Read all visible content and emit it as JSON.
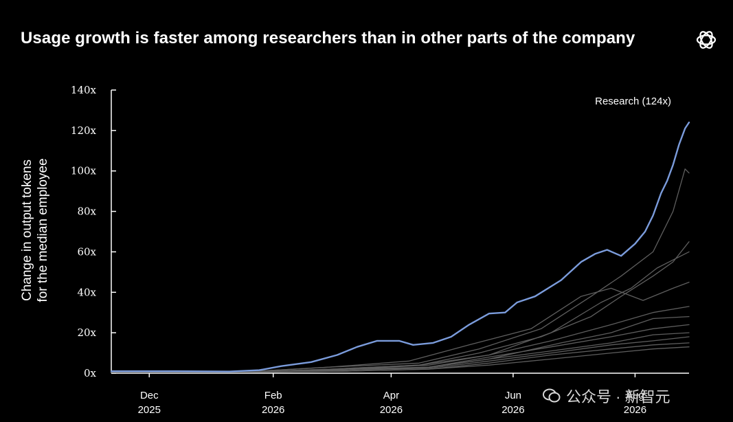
{
  "chart_data": {
    "type": "line",
    "title": "Usage growth is faster among researchers than in other parts of the company",
    "ylabel_lines": [
      "Change in output tokens",
      "for the median employee"
    ],
    "ylim": [
      0,
      140
    ],
    "yticks": [
      {
        "value": 0,
        "label": "0x"
      },
      {
        "value": 20,
        "label": "20x"
      },
      {
        "value": 40,
        "label": "40x"
      },
      {
        "value": 60,
        "label": "60x"
      },
      {
        "value": 80,
        "label": "80x"
      },
      {
        "value": 100,
        "label": "100x"
      },
      {
        "value": 120,
        "label": "120x"
      },
      {
        "value": 140,
        "label": "140x"
      }
    ],
    "xlim": [
      "2025-11-12",
      "2026-08-28"
    ],
    "xticks": [
      {
        "date": "2025-12-01",
        "month": "Dec",
        "year": "2025"
      },
      {
        "date": "2026-02-01",
        "month": "Feb",
        "year": "2026"
      },
      {
        "date": "2026-04-01",
        "month": "Apr",
        "year": "2026"
      },
      {
        "date": "2026-06-01",
        "month": "Jun",
        "year": "2026"
      },
      {
        "date": "2026-08-01",
        "month": "Aug",
        "year": "2026"
      }
    ],
    "annotation": {
      "text": "Research (124x)",
      "series": "Research"
    },
    "grid": false,
    "legend": "none",
    "highlight_color": "#7b9cdc",
    "other_color": "#5e5e5e",
    "series": [
      {
        "name": "Research",
        "highlight": true,
        "points": [
          [
            "2025-11-12",
            1
          ],
          [
            "2025-12-15",
            1
          ],
          [
            "2026-01-10",
            0.8
          ],
          [
            "2026-01-25",
            1.5
          ],
          [
            "2026-02-05",
            3.5
          ],
          [
            "2026-02-20",
            5.5
          ],
          [
            "2026-03-05",
            9
          ],
          [
            "2026-03-15",
            13
          ],
          [
            "2026-03-25",
            16
          ],
          [
            "2026-04-05",
            16
          ],
          [
            "2026-04-12",
            14
          ],
          [
            "2026-04-22",
            15
          ],
          [
            "2026-05-01",
            18
          ],
          [
            "2026-05-10",
            24
          ],
          [
            "2026-05-20",
            29.5
          ],
          [
            "2026-05-28",
            30
          ],
          [
            "2026-06-03",
            35
          ],
          [
            "2026-06-12",
            38
          ],
          [
            "2026-06-25",
            46
          ],
          [
            "2026-07-05",
            55
          ],
          [
            "2026-07-12",
            59
          ],
          [
            "2026-07-18",
            61
          ],
          [
            "2026-07-25",
            58
          ],
          [
            "2026-08-01",
            64
          ],
          [
            "2026-08-06",
            70
          ],
          [
            "2026-08-10",
            78
          ],
          [
            "2026-08-14",
            89
          ],
          [
            "2026-08-17",
            95
          ],
          [
            "2026-08-20",
            103
          ],
          [
            "2026-08-23",
            113
          ],
          [
            "2026-08-26",
            121
          ],
          [
            "2026-08-28",
            124
          ]
        ]
      },
      {
        "points": [
          [
            "2025-11-12",
            0.5
          ],
          [
            "2026-01-15",
            0.5
          ],
          [
            "2026-03-01",
            3
          ],
          [
            "2026-04-15",
            5
          ],
          [
            "2026-05-15",
            12
          ],
          [
            "2026-06-15",
            22
          ],
          [
            "2026-07-10",
            38
          ],
          [
            "2026-07-25",
            48
          ],
          [
            "2026-08-10",
            60
          ],
          [
            "2026-08-20",
            80
          ],
          [
            "2026-08-26",
            101
          ],
          [
            "2026-08-28",
            99
          ]
        ]
      },
      {
        "points": [
          [
            "2025-11-12",
            0.5
          ],
          [
            "2026-01-15",
            0.5
          ],
          [
            "2026-03-01",
            2
          ],
          [
            "2026-04-15",
            4
          ],
          [
            "2026-05-15",
            10
          ],
          [
            "2026-06-15",
            18
          ],
          [
            "2026-07-10",
            28
          ],
          [
            "2026-07-25",
            38
          ],
          [
            "2026-08-10",
            48
          ],
          [
            "2026-08-20",
            55
          ],
          [
            "2026-08-28",
            65
          ]
        ]
      },
      {
        "points": [
          [
            "2025-11-12",
            0.5
          ],
          [
            "2026-01-15",
            0.5
          ],
          [
            "2026-03-01",
            2
          ],
          [
            "2026-04-15",
            4
          ],
          [
            "2026-05-20",
            9
          ],
          [
            "2026-06-20",
            20
          ],
          [
            "2026-07-15",
            35
          ],
          [
            "2026-07-30",
            42
          ],
          [
            "2026-08-12",
            52
          ],
          [
            "2026-08-28",
            60
          ]
        ]
      },
      {
        "points": [
          [
            "2025-11-12",
            0.5
          ],
          [
            "2026-01-15",
            0.5
          ],
          [
            "2026-03-01",
            3
          ],
          [
            "2026-04-10",
            6
          ],
          [
            "2026-05-10",
            14
          ],
          [
            "2026-06-10",
            22
          ],
          [
            "2026-07-05",
            38
          ],
          [
            "2026-07-20",
            42
          ],
          [
            "2026-08-05",
            36
          ],
          [
            "2026-08-20",
            42
          ],
          [
            "2026-08-28",
            45
          ]
        ]
      },
      {
        "points": [
          [
            "2025-11-12",
            0.5
          ],
          [
            "2026-01-20",
            0.5
          ],
          [
            "2026-03-10",
            2
          ],
          [
            "2026-04-20",
            4
          ],
          [
            "2026-05-20",
            9
          ],
          [
            "2026-06-20",
            16
          ],
          [
            "2026-07-20",
            24
          ],
          [
            "2026-08-10",
            30
          ],
          [
            "2026-08-28",
            33
          ]
        ]
      },
      {
        "points": [
          [
            "2025-11-12",
            0.5
          ],
          [
            "2026-01-20",
            0.5
          ],
          [
            "2026-03-10",
            2
          ],
          [
            "2026-04-20",
            3
          ],
          [
            "2026-05-20",
            7
          ],
          [
            "2026-06-25",
            15
          ],
          [
            "2026-07-20",
            20
          ],
          [
            "2026-08-10",
            27
          ],
          [
            "2026-08-28",
            28
          ]
        ]
      },
      {
        "points": [
          [
            "2025-11-12",
            0.5
          ],
          [
            "2026-01-20",
            0.5
          ],
          [
            "2026-03-10",
            1.5
          ],
          [
            "2026-04-20",
            3
          ],
          [
            "2026-05-20",
            8
          ],
          [
            "2026-06-20",
            13
          ],
          [
            "2026-07-20",
            18
          ],
          [
            "2026-08-10",
            22
          ],
          [
            "2026-08-28",
            24
          ]
        ]
      },
      {
        "points": [
          [
            "2025-11-12",
            0.5
          ],
          [
            "2026-01-20",
            0.5
          ],
          [
            "2026-03-10",
            1.5
          ],
          [
            "2026-04-20",
            3
          ],
          [
            "2026-05-20",
            7
          ],
          [
            "2026-06-20",
            11
          ],
          [
            "2026-07-20",
            15
          ],
          [
            "2026-08-10",
            19
          ],
          [
            "2026-08-28",
            20
          ]
        ]
      },
      {
        "points": [
          [
            "2025-11-12",
            0.5
          ],
          [
            "2026-01-20",
            0.5
          ],
          [
            "2026-03-10",
            1.5
          ],
          [
            "2026-04-20",
            2.5
          ],
          [
            "2026-05-20",
            6
          ],
          [
            "2026-06-20",
            10
          ],
          [
            "2026-07-20",
            14
          ],
          [
            "2026-08-10",
            16
          ],
          [
            "2026-08-28",
            18
          ]
        ]
      },
      {
        "points": [
          [
            "2025-11-12",
            0.5
          ],
          [
            "2026-01-20",
            0.5
          ],
          [
            "2026-03-10",
            1
          ],
          [
            "2026-04-20",
            2
          ],
          [
            "2026-05-20",
            5
          ],
          [
            "2026-06-20",
            9
          ],
          [
            "2026-07-20",
            12
          ],
          [
            "2026-08-10",
            14
          ],
          [
            "2026-08-28",
            15
          ]
        ]
      },
      {
        "points": [
          [
            "2025-11-12",
            0.5
          ],
          [
            "2026-01-20",
            0.5
          ],
          [
            "2026-03-10",
            1
          ],
          [
            "2026-04-20",
            2
          ],
          [
            "2026-05-20",
            4
          ],
          [
            "2026-06-20",
            7
          ],
          [
            "2026-07-20",
            10
          ],
          [
            "2026-08-10",
            12
          ],
          [
            "2026-08-28",
            13
          ]
        ]
      }
    ]
  },
  "watermark": {
    "text": "公众号 · 新智元",
    "icon": "wechat-icon"
  }
}
